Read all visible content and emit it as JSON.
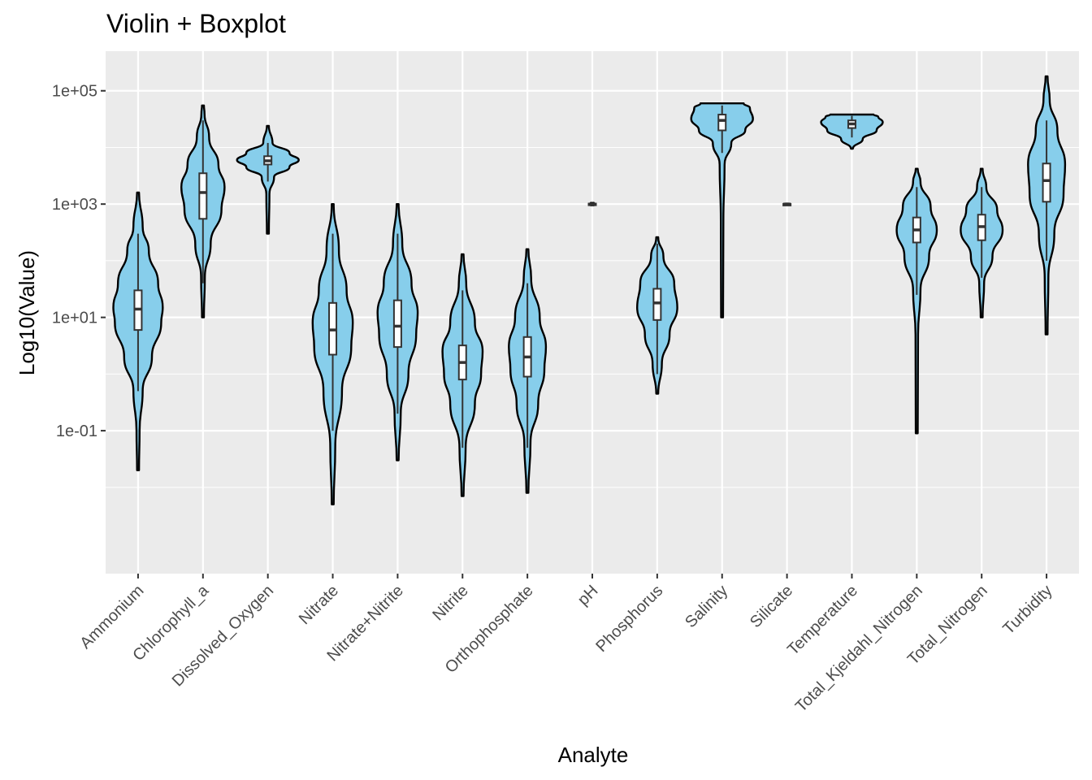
{
  "chart_data": {
    "type": "violin",
    "title": "Violin + Boxplot",
    "xlabel": "Analyte",
    "ylabel": "Log10(Value)",
    "y_scale": "log10",
    "ylim": [
      0.0003,
      500000
    ],
    "y_ticks": [
      0.1,
      10,
      1000,
      100000
    ],
    "y_tick_labels": [
      "1e-01",
      "1e+01",
      "1e+03",
      "1e+05"
    ],
    "grid": true,
    "legend": "none",
    "colors": {
      "fill": "#87ceeb",
      "outline": "#000000",
      "box_fill": "#ffffff",
      "box_line": "#333333",
      "panel": "#ebebeb",
      "grid": "#ffffff"
    },
    "categories": [
      "Ammonium",
      "Chlorophyll_a",
      "Dissolved_Oxygen",
      "Nitrate",
      "Nitrate+Nitrite",
      "Nitrite",
      "Orthophosphate",
      "pH",
      "Phosphorus",
      "Salinity",
      "Silicate",
      "Temperature",
      "Total_Kjeldahl_Nitrogen",
      "Total_Nitrogen",
      "Turbidity"
    ],
    "series": [
      {
        "category": "Ammonium",
        "min": 0.02,
        "max": 1600,
        "q1": 6,
        "median": 14,
        "q3": 30,
        "whisker_low": 0.5,
        "whisker_high": 300,
        "density": [
          [
            0.02,
            0.02
          ],
          [
            0.1,
            0.05
          ],
          [
            0.5,
            0.15
          ],
          [
            2,
            0.45
          ],
          [
            8,
            0.75
          ],
          [
            15,
            0.8
          ],
          [
            40,
            0.65
          ],
          [
            150,
            0.35
          ],
          [
            400,
            0.15
          ],
          [
            1600,
            0.03
          ]
        ]
      },
      {
        "category": "Chlorophyll_a",
        "min": 10,
        "max": 55000,
        "q1": 550,
        "median": 1600,
        "q3": 3500,
        "whisker_low": 40,
        "whisker_high": 30000,
        "density": [
          [
            10,
            0.02
          ],
          [
            50,
            0.06
          ],
          [
            200,
            0.25
          ],
          [
            800,
            0.6
          ],
          [
            2000,
            0.7
          ],
          [
            5000,
            0.5
          ],
          [
            15000,
            0.2
          ],
          [
            40000,
            0.05
          ],
          [
            55000,
            0.02
          ]
        ]
      },
      {
        "category": "Dissolved_Oxygen",
        "min": 300,
        "max": 24000,
        "q1": 5000,
        "median": 5800,
        "q3": 7000,
        "whisker_low": 2500,
        "whisker_high": 12000,
        "density": [
          [
            300,
            0.02
          ],
          [
            1500,
            0.05
          ],
          [
            3000,
            0.2
          ],
          [
            4500,
            0.7
          ],
          [
            6000,
            1.0
          ],
          [
            8000,
            0.7
          ],
          [
            12000,
            0.15
          ],
          [
            24000,
            0.02
          ]
        ]
      },
      {
        "category": "Nitrate",
        "min": 0.005,
        "max": 1000,
        "q1": 2.2,
        "median": 6,
        "q3": 18,
        "whisker_low": 0.1,
        "whisker_high": 300,
        "density": [
          [
            0.005,
            0.02
          ],
          [
            0.05,
            0.08
          ],
          [
            0.5,
            0.3
          ],
          [
            3,
            0.6
          ],
          [
            8,
            0.65
          ],
          [
            30,
            0.45
          ],
          [
            150,
            0.2
          ],
          [
            1000,
            0.03
          ]
        ]
      },
      {
        "category": "Nitrate+Nitrite",
        "min": 0.03,
        "max": 1000,
        "q1": 3,
        "median": 7,
        "q3": 20,
        "whisker_low": 0.2,
        "whisker_high": 300,
        "density": [
          [
            0.03,
            0.02
          ],
          [
            0.2,
            0.1
          ],
          [
            1,
            0.35
          ],
          [
            5,
            0.6
          ],
          [
            12,
            0.65
          ],
          [
            40,
            0.45
          ],
          [
            200,
            0.15
          ],
          [
            1000,
            0.03
          ]
        ]
      },
      {
        "category": "Nitrite",
        "min": 0.007,
        "max": 130,
        "q1": 0.8,
        "median": 1.6,
        "q3": 3.2,
        "whisker_low": 0.05,
        "whisker_high": 30,
        "density": [
          [
            0.007,
            0.02
          ],
          [
            0.05,
            0.1
          ],
          [
            0.3,
            0.4
          ],
          [
            1,
            0.6
          ],
          [
            2.5,
            0.65
          ],
          [
            8,
            0.4
          ],
          [
            40,
            0.12
          ],
          [
            130,
            0.03
          ]
        ]
      },
      {
        "category": "Orthophosphate",
        "min": 0.008,
        "max": 160,
        "q1": 0.9,
        "median": 2,
        "q3": 4.5,
        "whisker_low": 0.05,
        "whisker_high": 40,
        "density": [
          [
            0.008,
            0.02
          ],
          [
            0.06,
            0.1
          ],
          [
            0.3,
            0.35
          ],
          [
            1.2,
            0.55
          ],
          [
            3,
            0.6
          ],
          [
            10,
            0.4
          ],
          [
            50,
            0.12
          ],
          [
            160,
            0.03
          ]
        ]
      },
      {
        "category": "pH",
        "min": 950,
        "max": 1050,
        "q1": 980,
        "median": 1000,
        "q3": 1020,
        "whisker_low": 950,
        "whisker_high": 1050,
        "density": [
          [
            950,
            0.05
          ],
          [
            1000,
            0.05
          ],
          [
            1050,
            0.05
          ]
        ]
      },
      {
        "category": "Phosphorus",
        "min": 0.45,
        "max": 260,
        "q1": 9,
        "median": 18,
        "q3": 32,
        "whisker_low": 1,
        "whisker_high": 200,
        "density": [
          [
            0.45,
            0.02
          ],
          [
            1.5,
            0.15
          ],
          [
            5,
            0.4
          ],
          [
            15,
            0.65
          ],
          [
            40,
            0.55
          ],
          [
            120,
            0.2
          ],
          [
            260,
            0.03
          ]
        ]
      },
      {
        "category": "Salinity",
        "min": 10,
        "max": 60000,
        "q1": 20000,
        "median": 30000,
        "q3": 38000,
        "whisker_low": 8000,
        "whisker_high": 55000,
        "density": [
          [
            10,
            0.02
          ],
          [
            500,
            0.04
          ],
          [
            5000,
            0.08
          ],
          [
            12000,
            0.3
          ],
          [
            20000,
            0.75
          ],
          [
            32000,
            1.0
          ],
          [
            50000,
            0.9
          ],
          [
            60000,
            0.7
          ]
        ]
      },
      {
        "category": "Silicate",
        "min": 980,
        "max": 1020,
        "q1": 990,
        "median": 1000,
        "q3": 1010,
        "whisker_low": 980,
        "whisker_high": 1020,
        "density": [
          [
            980,
            0.05
          ],
          [
            1000,
            0.05
          ],
          [
            1020,
            0.05
          ]
        ]
      },
      {
        "category": "Temperature",
        "min": 9500,
        "max": 38000,
        "q1": 22000,
        "median": 26000,
        "q3": 30000,
        "whisker_low": 15000,
        "whisker_high": 36000,
        "density": [
          [
            9500,
            0.03
          ],
          [
            14000,
            0.35
          ],
          [
            20000,
            0.8
          ],
          [
            28000,
            1.0
          ],
          [
            35000,
            0.85
          ],
          [
            38000,
            0.7
          ]
        ]
      },
      {
        "category": "Total_Kjeldahl_Nitrogen",
        "min": 0.09,
        "max": 4200,
        "q1": 210,
        "median": 350,
        "q3": 580,
        "whisker_low": 25,
        "whisker_high": 2000,
        "density": [
          [
            0.09,
            0.02
          ],
          [
            5,
            0.04
          ],
          [
            30,
            0.12
          ],
          [
            120,
            0.4
          ],
          [
            350,
            0.65
          ],
          [
            900,
            0.45
          ],
          [
            2500,
            0.12
          ],
          [
            4200,
            0.02
          ]
        ]
      },
      {
        "category": "Total_Nitrogen",
        "min": 10,
        "max": 4200,
        "q1": 230,
        "median": 400,
        "q3": 650,
        "whisker_low": 50,
        "whisker_high": 2000,
        "density": [
          [
            10,
            0.02
          ],
          [
            40,
            0.08
          ],
          [
            120,
            0.35
          ],
          [
            350,
            0.68
          ],
          [
            800,
            0.5
          ],
          [
            2000,
            0.15
          ],
          [
            4200,
            0.02
          ]
        ]
      },
      {
        "category": "Turbidity",
        "min": 5,
        "max": 180000,
        "q1": 1100,
        "median": 2600,
        "q3": 5200,
        "whisker_low": 100,
        "whisker_high": 30000,
        "density": [
          [
            5,
            0.02
          ],
          [
            50,
            0.06
          ],
          [
            300,
            0.25
          ],
          [
            1500,
            0.55
          ],
          [
            5000,
            0.6
          ],
          [
            20000,
            0.35
          ],
          [
            70000,
            0.1
          ],
          [
            180000,
            0.02
          ]
        ]
      }
    ]
  }
}
